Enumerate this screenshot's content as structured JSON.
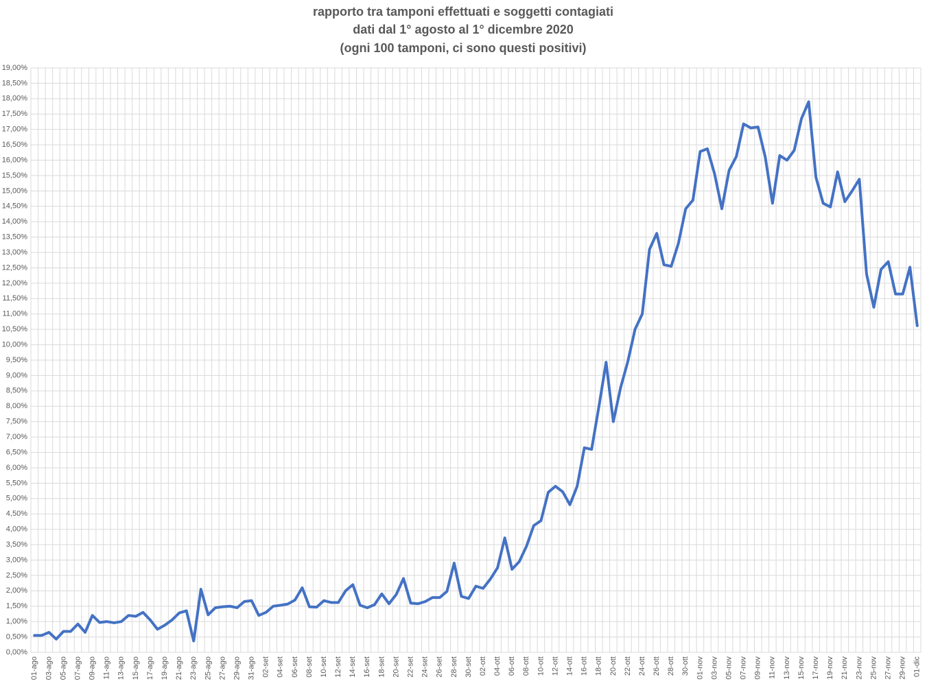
{
  "chart_data": {
    "type": "line",
    "title": [
      "rapporto tra tamponi effettuati e soggetti contagiati",
      "dati dal 1° agosto al 1° dicembre 2020",
      "(ogni 100 tamponi, ci sono questi positivi)"
    ],
    "categories": [
      "01-ago",
      null,
      "03-ago",
      null,
      "05-ago",
      null,
      "07-ago",
      null,
      "09-ago",
      null,
      "11-ago",
      null,
      "13-ago",
      null,
      "15-ago",
      null,
      "17-ago",
      null,
      "19-ago",
      null,
      "21-ago",
      null,
      "23-ago",
      null,
      "25-ago",
      null,
      "27-ago",
      null,
      "29-ago",
      null,
      "31-ago",
      null,
      "02-set",
      null,
      "04-set",
      null,
      "06-set",
      null,
      "08-set",
      null,
      "10-set",
      null,
      "12-set",
      null,
      "14-set",
      null,
      "16-set",
      null,
      "18-set",
      null,
      "20-set",
      null,
      "22-set",
      null,
      "24-set",
      null,
      "26-set",
      null,
      "28-set",
      null,
      "30-set",
      null,
      "02-ott",
      null,
      "04-ott",
      null,
      "06-ott",
      null,
      "08-ott",
      null,
      "10-ott",
      null,
      "12-ott",
      null,
      "14-ott",
      null,
      "16-ott",
      null,
      "18-ott",
      null,
      "20-ott",
      null,
      "22-ott",
      null,
      "24-ott",
      null,
      "26-ott",
      null,
      "28-ott",
      null,
      "30-ott",
      null,
      "01-nov",
      null,
      "03-nov",
      null,
      "05-nov",
      null,
      "07-nov",
      null,
      "09-nov",
      null,
      "11-nov",
      null,
      "13-nov",
      null,
      "15-nov",
      null,
      "17-nov",
      null,
      "19-nov",
      null,
      "21-nov",
      null,
      "23-nov",
      null,
      "25-nov",
      null,
      "27-nov",
      null,
      "29-nov",
      null,
      "01-dic"
    ],
    "values": [
      0.55,
      0.55,
      0.65,
      0.43,
      0.68,
      0.68,
      0.92,
      0.65,
      1.2,
      0.97,
      1.0,
      0.96,
      1.0,
      1.2,
      1.17,
      1.3,
      1.05,
      0.75,
      0.88,
      1.05,
      1.28,
      1.35,
      0.37,
      2.05,
      1.22,
      1.45,
      1.48,
      1.5,
      1.45,
      1.65,
      1.68,
      1.2,
      1.3,
      1.5,
      1.53,
      1.57,
      1.7,
      2.1,
      1.48,
      1.47,
      1.68,
      1.62,
      1.62,
      2.0,
      2.2,
      1.53,
      1.45,
      1.55,
      1.9,
      1.58,
      1.88,
      2.4,
      1.6,
      1.58,
      1.65,
      1.78,
      1.78,
      1.98,
      2.9,
      1.82,
      1.75,
      2.15,
      2.08,
      2.38,
      2.75,
      3.72,
      2.7,
      2.95,
      3.45,
      4.12,
      4.28,
      5.2,
      5.4,
      5.22,
      4.8,
      5.4,
      6.65,
      6.6,
      7.98,
      9.43,
      7.5,
      8.6,
      9.45,
      10.5,
      11.0,
      13.1,
      13.62,
      12.6,
      12.55,
      13.3,
      14.42,
      14.7,
      16.28,
      16.37,
      15.55,
      14.42,
      15.67,
      16.12,
      17.18,
      17.05,
      17.08,
      16.1,
      14.6,
      16.15,
      16.0,
      16.32,
      17.35,
      17.9,
      15.45,
      14.6,
      14.48,
      15.62,
      14.65,
      15.0,
      15.38,
      12.3,
      11.22,
      12.45,
      12.7,
      11.65,
      11.65,
      12.52,
      10.62
    ],
    "color": "#4472c4",
    "ylim": [
      0,
      19
    ],
    "yticks": [
      {
        "value": 0,
        "label": "0,00%"
      },
      {
        "value": 0.5,
        "label": "0,50%"
      },
      {
        "value": 1,
        "label": "1,00%"
      },
      {
        "value": 1.5,
        "label": "1,50%"
      },
      {
        "value": 2,
        "label": "2,00%"
      },
      {
        "value": 2.5,
        "label": "2,50%"
      },
      {
        "value": 3,
        "label": "3,00%"
      },
      {
        "value": 3.5,
        "label": "3,50%"
      },
      {
        "value": 4,
        "label": "4,00%"
      },
      {
        "value": 4.5,
        "label": "4,50%"
      },
      {
        "value": 5,
        "label": "5,00%"
      },
      {
        "value": 5.5,
        "label": "5,50%"
      },
      {
        "value": 6,
        "label": "6,00%"
      },
      {
        "value": 6.5,
        "label": "6,50%"
      },
      {
        "value": 7,
        "label": "7,00%"
      },
      {
        "value": 7.5,
        "label": "7,50%"
      },
      {
        "value": 8,
        "label": "8,00%"
      },
      {
        "value": 8.5,
        "label": "8,50%"
      },
      {
        "value": 9,
        "label": "9,00%"
      },
      {
        "value": 9.5,
        "label": "9,50%"
      },
      {
        "value": 10,
        "label": "10,00%"
      },
      {
        "value": 10.5,
        "label": "10,50%"
      },
      {
        "value": 11,
        "label": "11,00%"
      },
      {
        "value": 11.5,
        "label": "11,50%"
      },
      {
        "value": 12,
        "label": "12,00%"
      },
      {
        "value": 12.5,
        "label": "12,50%"
      },
      {
        "value": 13,
        "label": "13,00%"
      },
      {
        "value": 13.5,
        "label": "13,50%"
      },
      {
        "value": 14,
        "label": "14,00%"
      },
      {
        "value": 14.5,
        "label": "14,50%"
      },
      {
        "value": 15,
        "label": "15,00%"
      },
      {
        "value": 15.5,
        "label": "15,50%"
      },
      {
        "value": 16,
        "label": "16,00%"
      },
      {
        "value": 16.5,
        "label": "16,50%"
      },
      {
        "value": 17,
        "label": "17,00%"
      },
      {
        "value": 17.5,
        "label": "17,50%"
      },
      {
        "value": 18,
        "label": "18,00%"
      },
      {
        "value": 18.5,
        "label": "18,50%"
      },
      {
        "value": 19,
        "label": "19,00%"
      }
    ],
    "grid": true
  }
}
